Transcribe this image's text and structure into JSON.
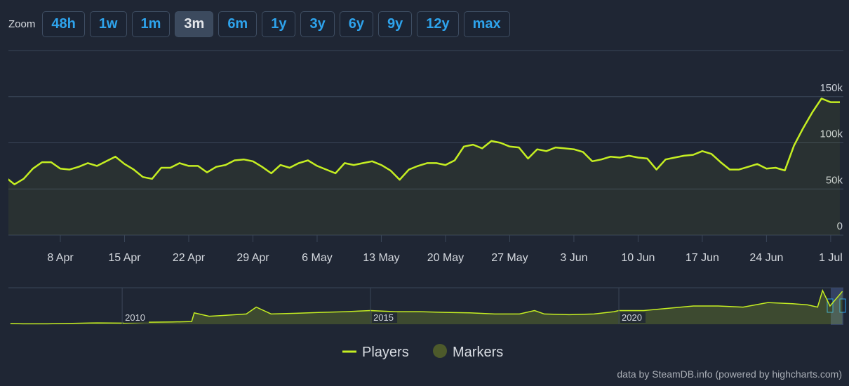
{
  "zoom": {
    "label": "Zoom",
    "buttons": [
      "48h",
      "1w",
      "1m",
      "3m",
      "6m",
      "1y",
      "3y",
      "6y",
      "9y",
      "12y",
      "max"
    ],
    "active": "3m"
  },
  "chart_data": [
    {
      "type": "line",
      "x": [
        "2 Apr",
        "3 Apr",
        "4 Apr",
        "5 Apr",
        "6 Apr",
        "7 Apr",
        "8 Apr",
        "9 Apr",
        "10 Apr",
        "11 Apr",
        "12 Apr",
        "13 Apr",
        "14 Apr",
        "15 Apr",
        "16 Apr",
        "17 Apr",
        "18 Apr",
        "19 Apr",
        "20 Apr",
        "21 Apr",
        "22 Apr",
        "23 Apr",
        "24 Apr",
        "25 Apr",
        "26 Apr",
        "27 Apr",
        "28 Apr",
        "29 Apr",
        "30 Apr",
        "1 May",
        "2 May",
        "3 May",
        "4 May",
        "5 May",
        "6 May",
        "7 May",
        "8 May",
        "9 May",
        "10 May",
        "11 May",
        "12 May",
        "13 May",
        "14 May",
        "15 May",
        "16 May",
        "17 May",
        "18 May",
        "19 May",
        "20 May",
        "21 May",
        "22 May",
        "23 May",
        "24 May",
        "25 May",
        "26 May",
        "27 May",
        "28 May",
        "29 May",
        "30 May",
        "31 May",
        "1 Jun",
        "2 Jun",
        "3 Jun",
        "4 Jun",
        "5 Jun",
        "6 Jun",
        "7 Jun",
        "8 Jun",
        "9 Jun",
        "10 Jun",
        "11 Jun",
        "12 Jun",
        "13 Jun",
        "14 Jun",
        "15 Jun",
        "16 Jun",
        "17 Jun",
        "18 Jun",
        "19 Jun",
        "20 Jun",
        "21 Jun",
        "22 Jun",
        "23 Jun",
        "24 Jun",
        "25 Jun",
        "26 Jun",
        "27 Jun",
        "28 Jun",
        "29 Jun",
        "30 Jun",
        "1 Jul",
        "2 Jul"
      ],
      "series": [
        {
          "name": "Players",
          "color": "#c5ee22",
          "values": [
            63000,
            55000,
            61000,
            72000,
            79000,
            79000,
            72000,
            71000,
            74000,
            78000,
            75000,
            80000,
            85000,
            77000,
            71000,
            63000,
            61000,
            73000,
            73000,
            78000,
            75000,
            75000,
            68000,
            74000,
            76000,
            81000,
            82000,
            80000,
            74000,
            67000,
            76000,
            73000,
            78000,
            81000,
            75000,
            71000,
            67000,
            78000,
            76000,
            78000,
            80000,
            76000,
            70000,
            60000,
            71000,
            75000,
            78000,
            78000,
            76000,
            81000,
            96000,
            98000,
            94000,
            102000,
            100000,
            96000,
            95000,
            83000,
            93000,
            91000,
            95000,
            94000,
            93000,
            90000,
            80000,
            82000,
            85000,
            84000,
            86000,
            84000,
            83000,
            71000,
            82000,
            84000,
            86000,
            87000,
            91000,
            88000,
            79000,
            71000,
            71000,
            74000,
            77000,
            72000,
            73000,
            70000,
            97000,
            116000,
            133000,
            148000,
            144000,
            144000
          ]
        }
      ],
      "markers": {
        "name": "Markers",
        "color": "#4d5a2b"
      },
      "ylim": [
        0,
        200000
      ],
      "yticks": [
        0,
        {
          "value": 50000,
          "label": "50k"
        },
        {
          "value": 100000,
          "label": "100k"
        },
        {
          "value": 150000,
          "label": "150k"
        }
      ],
      "xticks": [
        "8 Apr",
        "15 Apr",
        "22 Apr",
        "29 Apr",
        "6 May",
        "13 May",
        "20 May",
        "27 May",
        "3 Jun",
        "10 Jun",
        "17 Jun",
        "24 Jun",
        "1 Jul"
      ],
      "grid": true
    },
    {
      "type": "area",
      "x": [
        2007.75,
        2008.0,
        2008.5,
        2009.0,
        2009.5,
        2010.0,
        2010.5,
        2011.0,
        2011.4,
        2011.45,
        2011.75,
        2012.0,
        2012.5,
        2012.7,
        2013.0,
        2013.5,
        2014.0,
        2014.5,
        2015.0,
        2015.5,
        2016.0,
        2016.5,
        2017.0,
        2017.5,
        2018.0,
        2018.3,
        2018.5,
        2019.0,
        2019.5,
        2019.9,
        2020.0,
        2020.5,
        2021.0,
        2021.5,
        2022.0,
        2022.5,
        2023.0,
        2023.5,
        2023.8,
        2024.0,
        2024.1,
        2024.25,
        2024.5
      ],
      "values": [
        3000,
        2000,
        2000,
        4000,
        6000,
        5000,
        9000,
        10000,
        12000,
        50000,
        35000,
        38000,
        45000,
        75000,
        45000,
        48000,
        52000,
        55000,
        60000,
        55000,
        55000,
        52000,
        50000,
        45000,
        45000,
        60000,
        45000,
        42000,
        45000,
        55000,
        60000,
        60000,
        70000,
        80000,
        80000,
        75000,
        95000,
        90000,
        85000,
        75000,
        148000,
        80000,
        144000
      ],
      "color": "#c5ee22",
      "xlim": [
        2007.71,
        2024.52
      ],
      "ylim": [
        0,
        160000
      ],
      "xticks": [
        2010,
        2015,
        2020
      ]
    }
  ],
  "credit": "data by SteamDB.info (powered by highcharts.com)"
}
